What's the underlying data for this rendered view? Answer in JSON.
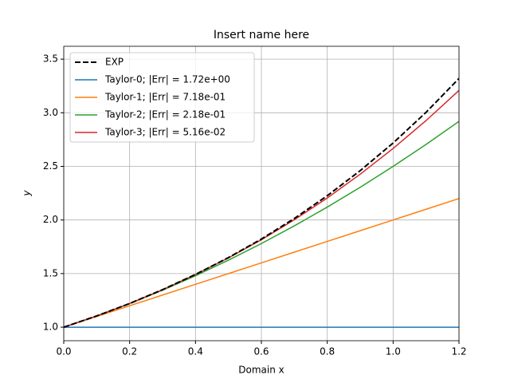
{
  "chart_data": {
    "type": "line",
    "title": "Insert name here",
    "xlabel": "Domain x",
    "ylabel": "y",
    "x": [
      0,
      0.1,
      0.2,
      0.3,
      0.4,
      0.5,
      0.6,
      0.7,
      0.8,
      0.9,
      1.0,
      1.1,
      1.2
    ],
    "series": [
      {
        "name": "EXP",
        "color": "#000000",
        "dashed": true,
        "values": [
          1,
          1.105,
          1.221,
          1.35,
          1.492,
          1.649,
          1.822,
          2.014,
          2.226,
          2.46,
          2.718,
          3.004,
          3.32
        ]
      },
      {
        "name": "Taylor-0; |Err| = 1.72e+00",
        "color": "#1f77b4",
        "values": [
          1,
          1,
          1,
          1,
          1,
          1,
          1,
          1,
          1,
          1,
          1,
          1,
          1
        ]
      },
      {
        "name": "Taylor-1; |Err| = 7.18e-01",
        "color": "#ff7f0e",
        "values": [
          1,
          1.1,
          1.2,
          1.3,
          1.4,
          1.5,
          1.6,
          1.7,
          1.8,
          1.9,
          2.0,
          2.1,
          2.2
        ]
      },
      {
        "name": "Taylor-2; |Err| = 2.18e-01",
        "color": "#2ca02c",
        "values": [
          1,
          1.105,
          1.22,
          1.345,
          1.48,
          1.625,
          1.78,
          1.945,
          2.12,
          2.305,
          2.5,
          2.705,
          2.92
        ]
      },
      {
        "name": "Taylor-3; |Err| = 5.16e-02",
        "color": "#d62728",
        "values": [
          1,
          1.105,
          1.221,
          1.35,
          1.491,
          1.646,
          1.816,
          2.002,
          2.205,
          2.427,
          2.667,
          2.927,
          3.208
        ]
      }
    ],
    "xlim": [
      0,
      1.2
    ],
    "ylim": [
      0.874,
      3.62
    ],
    "xticks": [
      {
        "value": 0,
        "label": "0.0"
      },
      {
        "value": 0.2,
        "label": "0.2"
      },
      {
        "value": 0.4,
        "label": "0.4"
      },
      {
        "value": 0.6,
        "label": "0.6"
      },
      {
        "value": 0.8,
        "label": "0.8"
      },
      {
        "value": 1.0,
        "label": "1.0"
      },
      {
        "value": 1.2,
        "label": "1.2"
      }
    ],
    "yticks": [
      {
        "value": 1.0,
        "label": "1.0"
      },
      1.5,
      {
        "value": 2.0,
        "label": "2.0"
      },
      2.5,
      {
        "value": 3.0,
        "label": "3.0"
      },
      3.5
    ],
    "grid": true,
    "legend": "upper-left"
  }
}
